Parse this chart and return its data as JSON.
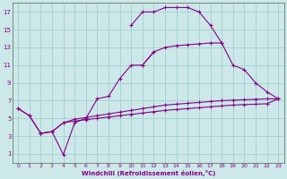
{
  "xlabel": "Windchill (Refroidissement éolien,°C)",
  "bg_color": "#cce8e8",
  "line_color": "#880088",
  "grid_color": "#99cccc",
  "spine_color": "#556655",
  "xlim": [
    -0.5,
    23.5
  ],
  "ylim": [
    0,
    18
  ],
  "xticks": [
    0,
    1,
    2,
    3,
    4,
    5,
    6,
    7,
    8,
    9,
    10,
    11,
    12,
    13,
    14,
    15,
    16,
    17,
    18,
    19,
    20,
    21,
    22,
    23
  ],
  "yticks": [
    1,
    3,
    5,
    7,
    9,
    11,
    13,
    15,
    17
  ],
  "series": [
    {
      "x": [
        0,
        1,
        2,
        3,
        4,
        5,
        6,
        7,
        8,
        9,
        10,
        11,
        12
      ],
      "y": [
        6.1,
        5.3,
        3.3,
        3.5,
        0.9,
        4.5,
        5.0,
        7.2,
        7.5,
        9.5,
        11.0,
        11.0,
        12.5
      ]
    },
    {
      "x": [
        0,
        1,
        2,
        3,
        4,
        5,
        6,
        7,
        8,
        9,
        10,
        11,
        12,
        13,
        14,
        15,
        16,
        17,
        18,
        19,
        20,
        21,
        22,
        23
      ],
      "y": [
        6.1,
        5.3,
        3.3,
        3.5,
        4.5,
        4.9,
        5.1,
        5.3,
        5.5,
        5.7,
        5.9,
        6.1,
        6.3,
        6.5,
        6.6,
        6.7,
        6.8,
        6.9,
        7.0,
        7.05,
        7.1,
        7.15,
        7.2,
        7.2
      ]
    },
    {
      "x": [
        2,
        3,
        4,
        5,
        6,
        7,
        8,
        9,
        10,
        11,
        12,
        13,
        14,
        15,
        16,
        17,
        18,
        19,
        20,
        21,
        22,
        23
      ],
      "y": [
        3.3,
        3.5,
        4.5,
        4.7,
        4.85,
        5.0,
        5.15,
        5.3,
        5.45,
        5.6,
        5.75,
        5.9,
        6.0,
        6.1,
        6.2,
        6.3,
        6.4,
        6.5,
        6.55,
        6.6,
        6.65,
        7.2
      ]
    },
    {
      "x": [
        10,
        11,
        12,
        13,
        14,
        15,
        16,
        17,
        18
      ],
      "y": [
        15.5,
        17.0,
        17.0,
        17.5,
        17.5,
        17.5,
        17.0,
        15.5,
        13.5
      ]
    },
    {
      "x": [
        11,
        12,
        13,
        14,
        15,
        16,
        17,
        18,
        19,
        20,
        21,
        22,
        23
      ],
      "y": [
        11.0,
        12.5,
        13.0,
        13.2,
        13.3,
        13.4,
        13.5,
        13.5,
        11.0,
        10.5,
        9.0,
        8.0,
        7.2
      ]
    }
  ]
}
